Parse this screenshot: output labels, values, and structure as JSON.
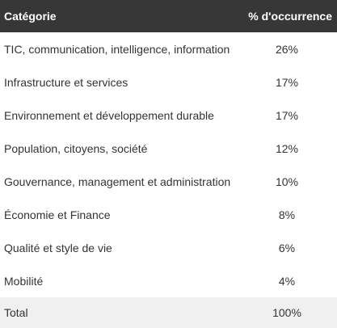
{
  "table": {
    "headers": {
      "category": "Catégorie",
      "percent": "% d'occurrence"
    },
    "rows": [
      {
        "category": "TIC, communication, intelligence, information",
        "percent": "26%"
      },
      {
        "category": "Infrastructure et services",
        "percent": "17%"
      },
      {
        "category": "Environnement et développement durable",
        "percent": "17%"
      },
      {
        "category": "Population, citoyens, société",
        "percent": "12%"
      },
      {
        "category": "Gouvernance, management et administration",
        "percent": "10%"
      },
      {
        "category": "Économie et Finance",
        "percent": "8%"
      },
      {
        "category": "Qualité et style de vie",
        "percent": "6%"
      },
      {
        "category": "Mobilité",
        "percent": "4%"
      }
    ],
    "total": {
      "category": "Total",
      "percent": "100%"
    }
  },
  "colors": {
    "header_bg": "#373737",
    "header_text": "#ffffff",
    "row_text": "#333333",
    "total_bg": "#f0f0f0"
  }
}
